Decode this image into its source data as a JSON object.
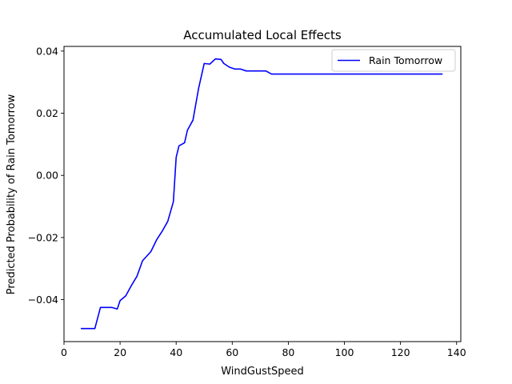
{
  "chart_data": {
    "type": "line",
    "title": "Accumulated Local Effects",
    "xlabel": "WindGustSpeed",
    "ylabel": "Predicted Probability of Rain Tomorrow",
    "xlim": [
      0,
      141.5
    ],
    "ylim": [
      -0.0535,
      0.0415
    ],
    "xticks": [
      0,
      20,
      40,
      60,
      80,
      100,
      120,
      140
    ],
    "yticks": [
      -0.04,
      -0.02,
      0.0,
      0.02,
      0.04
    ],
    "ytick_labels": [
      "−0.04",
      "−0.02",
      "0.00",
      "0.02",
      "0.04"
    ],
    "grid": false,
    "legend_position": "top-right",
    "series": [
      {
        "name": "Rain Tomorrow",
        "color": "#0000ff",
        "x": [
          6,
          7,
          9,
          11,
          13,
          15,
          17,
          19,
          20,
          22,
          24,
          26,
          28,
          31,
          33,
          35,
          37,
          39,
          40,
          41,
          43,
          44,
          46,
          48,
          50,
          52,
          54,
          56,
          57,
          59,
          61,
          63,
          65,
          67,
          69,
          72,
          74,
          76,
          78,
          80,
          83,
          85,
          90,
          100,
          110,
          120,
          135
        ],
        "y": [
          -0.0493,
          -0.0493,
          -0.0493,
          -0.0493,
          -0.0425,
          -0.0425,
          -0.0425,
          -0.043,
          -0.0403,
          -0.0388,
          -0.0355,
          -0.0325,
          -0.0275,
          -0.0245,
          -0.0208,
          -0.018,
          -0.0148,
          -0.0085,
          0.0058,
          0.0095,
          0.0105,
          0.0145,
          0.0178,
          0.028,
          0.036,
          0.0358,
          0.0375,
          0.0373,
          0.036,
          0.0348,
          0.0342,
          0.0342,
          0.0336,
          0.0336,
          0.0336,
          0.0336,
          0.0326,
          0.0326,
          0.0326,
          0.0326,
          0.0326,
          0.0326,
          0.0326,
          0.0326,
          0.0326,
          0.0326,
          0.0326
        ]
      }
    ]
  }
}
